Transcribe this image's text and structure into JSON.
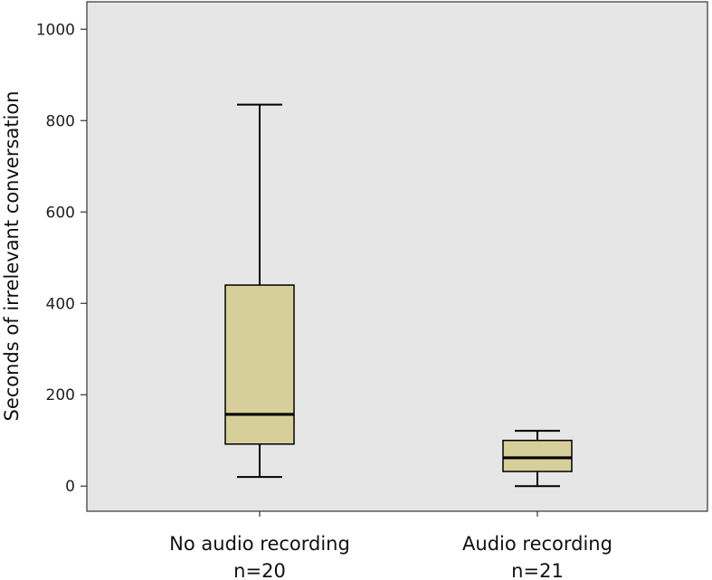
{
  "chart_data": {
    "type": "boxplot",
    "ylabel": "Seconds of irrelevant conversation",
    "ylim": [
      -55,
      1060
    ],
    "yticks": [
      0,
      200,
      400,
      600,
      800,
      1000
    ],
    "categories": [
      {
        "name": "No audio recording",
        "n_label": "n=20"
      },
      {
        "name": "Audio recording",
        "n_label": "n=21"
      }
    ],
    "boxes": [
      {
        "category": "No audio recording",
        "whisker_low": 20,
        "q1": 92,
        "median": 157,
        "q3": 440,
        "whisker_high": 835
      },
      {
        "category": "Audio recording",
        "whisker_low": 0,
        "q1": 32,
        "median": 62,
        "q3": 100,
        "whisker_high": 121
      }
    ],
    "colors": {
      "plot_background": "#e6e6e6",
      "box_fill": "#d6cf9a",
      "line": "#000000"
    }
  }
}
